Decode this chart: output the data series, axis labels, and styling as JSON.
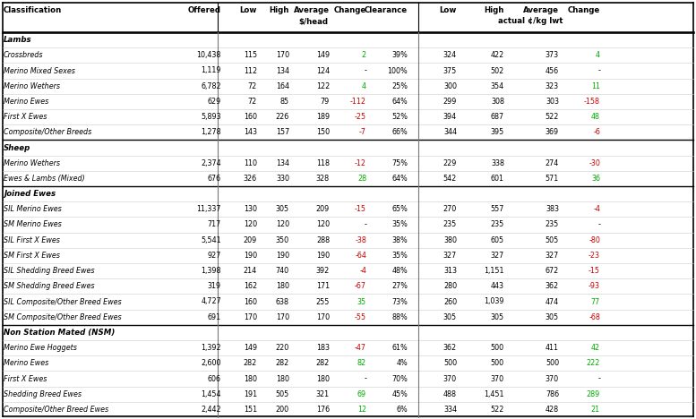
{
  "rows": [
    {
      "type": "section",
      "name": "Lambs"
    },
    {
      "type": "data",
      "name": "Crossbreds",
      "offered": "10,438",
      "low": "115",
      "high": "170",
      "avg": "149",
      "change": "2",
      "change_color": "green",
      "clearance": "39%",
      "low2": "324",
      "high2": "422",
      "avg2": "373",
      "change2": "4",
      "change2_color": "green"
    },
    {
      "type": "data",
      "name": "Merino Mixed Sexes",
      "offered": "1,119",
      "low": "112",
      "high": "134",
      "avg": "124",
      "change": "-",
      "change_color": "black",
      "clearance": "100%",
      "low2": "375",
      "high2": "502",
      "avg2": "456",
      "change2": "-",
      "change2_color": "black"
    },
    {
      "type": "data",
      "name": "Merino Wethers",
      "offered": "6,782",
      "low": "72",
      "high": "164",
      "avg": "122",
      "change": "4",
      "change_color": "green",
      "clearance": "25%",
      "low2": "300",
      "high2": "354",
      "avg2": "323",
      "change2": "11",
      "change2_color": "green"
    },
    {
      "type": "data",
      "name": "Merino Ewes",
      "offered": "629",
      "low": "72",
      "high": "85",
      "avg": "79",
      "change": "-112",
      "change_color": "red",
      "clearance": "64%",
      "low2": "299",
      "high2": "308",
      "avg2": "303",
      "change2": "-158",
      "change2_color": "red"
    },
    {
      "type": "data",
      "name": "First X Ewes",
      "offered": "5,893",
      "low": "160",
      "high": "226",
      "avg": "189",
      "change": "-25",
      "change_color": "red",
      "clearance": "52%",
      "low2": "394",
      "high2": "687",
      "avg2": "522",
      "change2": "48",
      "change2_color": "green"
    },
    {
      "type": "data",
      "name": "Composite/Other Breeds",
      "offered": "1,278",
      "low": "143",
      "high": "157",
      "avg": "150",
      "change": "-7",
      "change_color": "red",
      "clearance": "66%",
      "low2": "344",
      "high2": "395",
      "avg2": "369",
      "change2": "-6",
      "change2_color": "red"
    },
    {
      "type": "section",
      "name": "Sheep"
    },
    {
      "type": "data",
      "name": "Merino Wethers",
      "offered": "2,374",
      "low": "110",
      "high": "134",
      "avg": "118",
      "change": "-12",
      "change_color": "red",
      "clearance": "75%",
      "low2": "229",
      "high2": "338",
      "avg2": "274",
      "change2": "-30",
      "change2_color": "red"
    },
    {
      "type": "data",
      "name": "Ewes & Lambs (Mixed)",
      "offered": "676",
      "low": "326",
      "high": "330",
      "avg": "328",
      "change": "28",
      "change_color": "green",
      "clearance": "64%",
      "low2": "542",
      "high2": "601",
      "avg2": "571",
      "change2": "36",
      "change2_color": "green"
    },
    {
      "type": "section",
      "name": "Joined Ewes"
    },
    {
      "type": "data",
      "name": "SIL Merino Ewes",
      "offered": "11,337",
      "low": "130",
      "high": "305",
      "avg": "209",
      "change": "-15",
      "change_color": "red",
      "clearance": "65%",
      "low2": "270",
      "high2": "557",
      "avg2": "383",
      "change2": "-4",
      "change2_color": "red"
    },
    {
      "type": "data",
      "name": "SM Merino Ewes",
      "offered": "717",
      "low": "120",
      "high": "120",
      "avg": "120",
      "change": "-",
      "change_color": "black",
      "clearance": "35%",
      "low2": "235",
      "high2": "235",
      "avg2": "235",
      "change2": "-",
      "change2_color": "black"
    },
    {
      "type": "data",
      "name": "SIL First X Ewes",
      "offered": "5,541",
      "low": "209",
      "high": "350",
      "avg": "288",
      "change": "-38",
      "change_color": "red",
      "clearance": "38%",
      "low2": "380",
      "high2": "605",
      "avg2": "505",
      "change2": "-80",
      "change2_color": "red"
    },
    {
      "type": "data",
      "name": "SM First X Ewes",
      "offered": "927",
      "low": "190",
      "high": "190",
      "avg": "190",
      "change": "-64",
      "change_color": "red",
      "clearance": "35%",
      "low2": "327",
      "high2": "327",
      "avg2": "327",
      "change2": "-23",
      "change2_color": "red"
    },
    {
      "type": "data",
      "name": "SIL Shedding Breed Ewes",
      "offered": "1,398",
      "low": "214",
      "high": "740",
      "avg": "392",
      "change": "-4",
      "change_color": "red",
      "clearance": "48%",
      "low2": "313",
      "high2": "1,151",
      "avg2": "672",
      "change2": "-15",
      "change2_color": "red"
    },
    {
      "type": "data",
      "name": "SM Shedding Breed Ewes",
      "offered": "319",
      "low": "162",
      "high": "180",
      "avg": "171",
      "change": "-67",
      "change_color": "red",
      "clearance": "27%",
      "low2": "280",
      "high2": "443",
      "avg2": "362",
      "change2": "-93",
      "change2_color": "red"
    },
    {
      "type": "data",
      "name": "SIL Composite/Other Breed Ewes",
      "offered": "4,727",
      "low": "160",
      "high": "638",
      "avg": "255",
      "change": "35",
      "change_color": "green",
      "clearance": "73%",
      "low2": "260",
      "high2": "1,039",
      "avg2": "474",
      "change2": "77",
      "change2_color": "green"
    },
    {
      "type": "data",
      "name": "SM Composite/Other Breed Ewes",
      "offered": "691",
      "low": "170",
      "high": "170",
      "avg": "170",
      "change": "-55",
      "change_color": "red",
      "clearance": "88%",
      "low2": "305",
      "high2": "305",
      "avg2": "305",
      "change2": "-68",
      "change2_color": "red"
    },
    {
      "type": "section",
      "name": "Non Station Mated (NSM)"
    },
    {
      "type": "data",
      "name": "Merino Ewe Hoggets",
      "offered": "1,392",
      "low": "149",
      "high": "220",
      "avg": "183",
      "change": "-47",
      "change_color": "red",
      "clearance": "61%",
      "low2": "362",
      "high2": "500",
      "avg2": "411",
      "change2": "42",
      "change2_color": "green"
    },
    {
      "type": "data",
      "name": "Merino Ewes",
      "offered": "2,600",
      "low": "282",
      "high": "282",
      "avg": "282",
      "change": "82",
      "change_color": "green",
      "clearance": "4%",
      "low2": "500",
      "high2": "500",
      "avg2": "500",
      "change2": "222",
      "change2_color": "green"
    },
    {
      "type": "data",
      "name": "First X Ewes",
      "offered": "606",
      "low": "180",
      "high": "180",
      "avg": "180",
      "change": "-",
      "change_color": "black",
      "clearance": "70%",
      "low2": "370",
      "high2": "370",
      "avg2": "370",
      "change2": "-",
      "change2_color": "black"
    },
    {
      "type": "data",
      "name": "Shedding Breed Ewes",
      "offered": "1,454",
      "low": "191",
      "high": "505",
      "avg": "321",
      "change": "69",
      "change_color": "green",
      "clearance": "45%",
      "low2": "488",
      "high2": "1,451",
      "avg2": "786",
      "change2": "289",
      "change2_color": "green"
    },
    {
      "type": "data",
      "name": "Composite/Other Breed Ewes",
      "offered": "2,442",
      "low": "151",
      "high": "200",
      "avg": "176",
      "change": "12",
      "change_color": "green",
      "clearance": "6%",
      "low2": "334",
      "high2": "522",
      "avg2": "428",
      "change2": "21",
      "change2_color": "green"
    }
  ],
  "green_color": "#00aa00",
  "red_color": "#cc0000",
  "fig_width": 7.77,
  "fig_height": 4.68,
  "dpi": 100
}
